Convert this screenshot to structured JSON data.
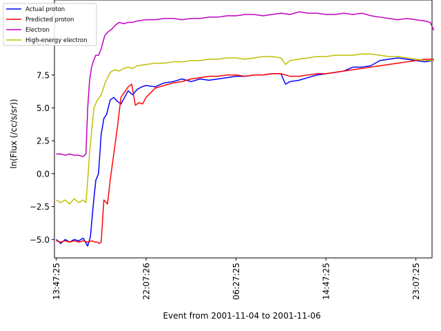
{
  "chart_data": {
    "type": "line",
    "xlabel": "Event from 2001-11-04 to 2001-11-06",
    "ylabel": "ln(Flux (/cc/s/sr))",
    "xlim": [
      -0.2,
      41.8
    ],
    "ylim": [
      -6.4,
      13.2
    ],
    "x_ticks": [
      {
        "pos": 0,
        "label": "13:47:25"
      },
      {
        "pos": 10,
        "label": "22:07:26"
      },
      {
        "pos": 20,
        "label": "06:27:25"
      },
      {
        "pos": 30,
        "label": "14:47:25"
      },
      {
        "pos": 40,
        "label": "23:07:25"
      }
    ],
    "y_ticks": [
      -5.0,
      -2.5,
      0.0,
      2.5,
      5.0,
      7.5,
      10.0
    ],
    "y_tick_labels": [
      "−5.0",
      "−2.5",
      "0.0",
      "2.5",
      "5.0",
      "7.5",
      "10.0"
    ],
    "grid": false,
    "legend_position": "top-left",
    "series": [
      {
        "name": "Actual proton",
        "color": "#0000ff",
        "x": [
          0,
          0.5,
          1,
          1.5,
          2,
          2.5,
          3,
          3.5,
          3.8,
          4.1,
          4.4,
          4.7,
          5,
          5.3,
          5.6,
          6,
          6.4,
          6.8,
          7.2,
          7.6,
          8,
          8.5,
          9,
          9.5,
          10,
          11,
          12,
          13,
          14,
          15,
          16,
          17,
          18,
          19,
          20,
          21,
          22,
          23,
          24,
          25,
          25.5,
          26,
          27,
          28,
          29,
          30,
          31,
          32,
          33,
          34,
          35,
          36,
          37,
          38,
          39,
          40,
          41,
          42
        ],
        "y": [
          -5.0,
          -5.3,
          -5.0,
          -5.2,
          -5.0,
          -5.1,
          -4.9,
          -5.5,
          -4.8,
          -2.5,
          -0.5,
          0.0,
          3.0,
          4.2,
          4.5,
          5.6,
          5.8,
          5.5,
          5.3,
          5.8,
          6.3,
          6.0,
          6.4,
          6.6,
          6.7,
          6.6,
          6.9,
          7.0,
          7.2,
          7.0,
          7.2,
          7.1,
          7.2,
          7.3,
          7.4,
          7.4,
          7.5,
          7.5,
          7.6,
          7.6,
          6.8,
          7.0,
          7.1,
          7.3,
          7.5,
          7.6,
          7.7,
          7.8,
          8.1,
          8.1,
          8.2,
          8.6,
          8.7,
          8.8,
          8.7,
          8.6,
          8.5,
          8.6
        ]
      },
      {
        "name": "Predicted proton",
        "color": "#ff0000",
        "x": [
          0,
          0.5,
          1,
          1.5,
          2,
          2.5,
          3,
          3.5,
          4,
          4.3,
          4.6,
          4.8,
          5.0,
          5.3,
          5.7,
          6,
          6.4,
          6.8,
          7.2,
          7.6,
          8,
          8.4,
          8.8,
          9.2,
          9.6,
          10,
          11,
          12,
          13,
          14,
          15,
          16,
          17,
          18,
          19,
          20,
          21,
          22,
          23,
          24,
          25,
          25.5,
          26,
          27,
          28,
          29,
          30,
          31,
          32,
          33,
          34,
          35,
          36,
          37,
          38,
          39,
          40,
          41,
          42
        ],
        "y": [
          -5.1,
          -5.2,
          -5.1,
          -5.2,
          -5.1,
          -5.2,
          -5.1,
          -5.2,
          -5.1,
          -5.2,
          -5.2,
          -5.3,
          -5.2,
          -2.0,
          -2.3,
          -0.5,
          1.5,
          3.5,
          5.8,
          6.2,
          6.6,
          6.8,
          5.2,
          5.4,
          5.3,
          5.8,
          6.5,
          6.7,
          6.9,
          7.0,
          7.2,
          7.3,
          7.4,
          7.4,
          7.5,
          7.5,
          7.4,
          7.5,
          7.5,
          7.6,
          7.6,
          7.5,
          7.4,
          7.4,
          7.5,
          7.6,
          7.6,
          7.7,
          7.8,
          7.9,
          8.0,
          8.1,
          8.2,
          8.3,
          8.4,
          8.5,
          8.6,
          8.7,
          8.7
        ]
      },
      {
        "name": "Electron",
        "color": "#bf00bf",
        "x": [
          0,
          0.5,
          1,
          1.5,
          2,
          2.5,
          3,
          3.3,
          3.5,
          3.7,
          3.9,
          4.1,
          4.4,
          4.7,
          5,
          5.4,
          5.8,
          6.2,
          6.6,
          7,
          7.5,
          8,
          8.5,
          9,
          10,
          11,
          12,
          13,
          14,
          15,
          16,
          17,
          18,
          19,
          20,
          21,
          22,
          23,
          24,
          25,
          26,
          27,
          28,
          29,
          30,
          31,
          32,
          33,
          34,
          35,
          36,
          37,
          38,
          39,
          40,
          41,
          41.6,
          42
        ],
        "y": [
          1.5,
          1.5,
          1.4,
          1.5,
          1.4,
          1.4,
          1.3,
          1.5,
          5.0,
          7.0,
          8.0,
          8.5,
          9.0,
          9.0,
          9.5,
          10.5,
          10.8,
          11.0,
          11.3,
          11.5,
          11.4,
          11.5,
          11.5,
          11.6,
          11.7,
          11.7,
          11.8,
          11.8,
          11.7,
          11.8,
          11.8,
          11.9,
          11.9,
          12.0,
          12.0,
          12.1,
          12.1,
          12.0,
          12.1,
          12.2,
          12.1,
          12.3,
          12.2,
          12.2,
          12.1,
          12.1,
          12.2,
          12.1,
          12.2,
          12.0,
          11.9,
          11.8,
          11.7,
          11.8,
          11.7,
          11.6,
          11.5,
          10.9
        ]
      },
      {
        "name": "High-energy electron",
        "color": "#bfbf00",
        "x": [
          0,
          0.5,
          1,
          1.5,
          2,
          2.5,
          3,
          3.3,
          3.5,
          3.7,
          3.9,
          4.2,
          4.5,
          5,
          5.5,
          6,
          6.5,
          7,
          7.5,
          8,
          8.5,
          9,
          10,
          11,
          12,
          13,
          14,
          15,
          16,
          17,
          18,
          19,
          20,
          21,
          22,
          23,
          24,
          25,
          25.5,
          26,
          27,
          28,
          29,
          30,
          31,
          32,
          33,
          34,
          35,
          36,
          37,
          38,
          39,
          40,
          41,
          42
        ],
        "y": [
          -2.0,
          -2.2,
          -2.0,
          -2.3,
          -1.9,
          -2.2,
          -2.0,
          -2.2,
          -0.5,
          1.5,
          3.0,
          5.0,
          5.5,
          6.0,
          7.0,
          7.7,
          7.9,
          7.8,
          8.0,
          8.1,
          8.0,
          8.2,
          8.3,
          8.4,
          8.4,
          8.5,
          8.5,
          8.6,
          8.6,
          8.7,
          8.7,
          8.8,
          8.8,
          8.7,
          8.8,
          8.9,
          8.9,
          8.8,
          8.3,
          8.6,
          8.7,
          8.8,
          8.9,
          8.9,
          9.0,
          9.0,
          9.0,
          9.1,
          9.1,
          9.0,
          8.9,
          8.9,
          8.8,
          8.7,
          8.6,
          8.6
        ]
      }
    ]
  }
}
